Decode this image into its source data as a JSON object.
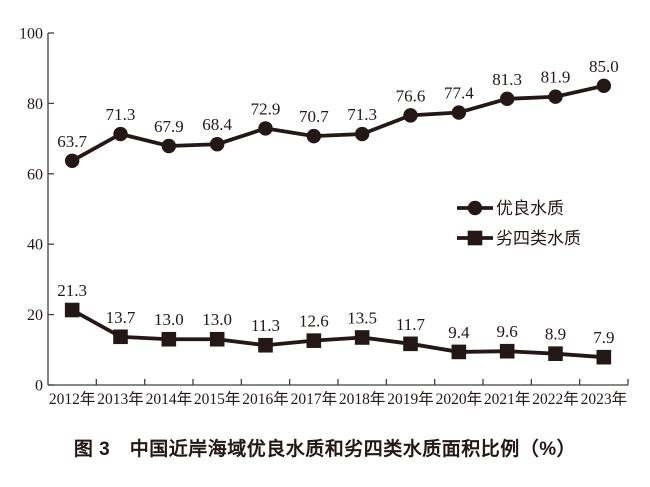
{
  "figure": {
    "caption": "图 3　中国近岸海域优良水质和劣四类水质面积比例（%）"
  },
  "chart_data": {
    "type": "line",
    "title": "图 3　中国近岸海域优良水质和劣四类水质面积比例（%）",
    "categories": [
      "2012年",
      "2013年",
      "2014年",
      "2015年",
      "2016年",
      "2017年",
      "2018年",
      "2019年",
      "2020年",
      "2021年",
      "2022年",
      "2023年"
    ],
    "series": [
      {
        "name": "优良水质",
        "marker": "circle",
        "values": [
          63.7,
          71.3,
          67.9,
          68.4,
          72.9,
          70.7,
          71.3,
          76.6,
          77.4,
          81.3,
          81.9,
          85.0
        ]
      },
      {
        "name": "劣四类水质",
        "marker": "square",
        "values": [
          21.3,
          13.7,
          13.0,
          13.0,
          11.3,
          12.6,
          13.5,
          11.7,
          9.4,
          9.6,
          8.9,
          7.9
        ]
      }
    ],
    "ylim": [
      0,
      100
    ],
    "yticks": [
      0,
      20,
      40,
      60,
      80,
      100
    ],
    "xlabel": "",
    "ylabel": "",
    "grid": false,
    "data_labels": true,
    "legend_position": "middle-right",
    "ink_color": "#231815",
    "axis_color": "#404040"
  }
}
